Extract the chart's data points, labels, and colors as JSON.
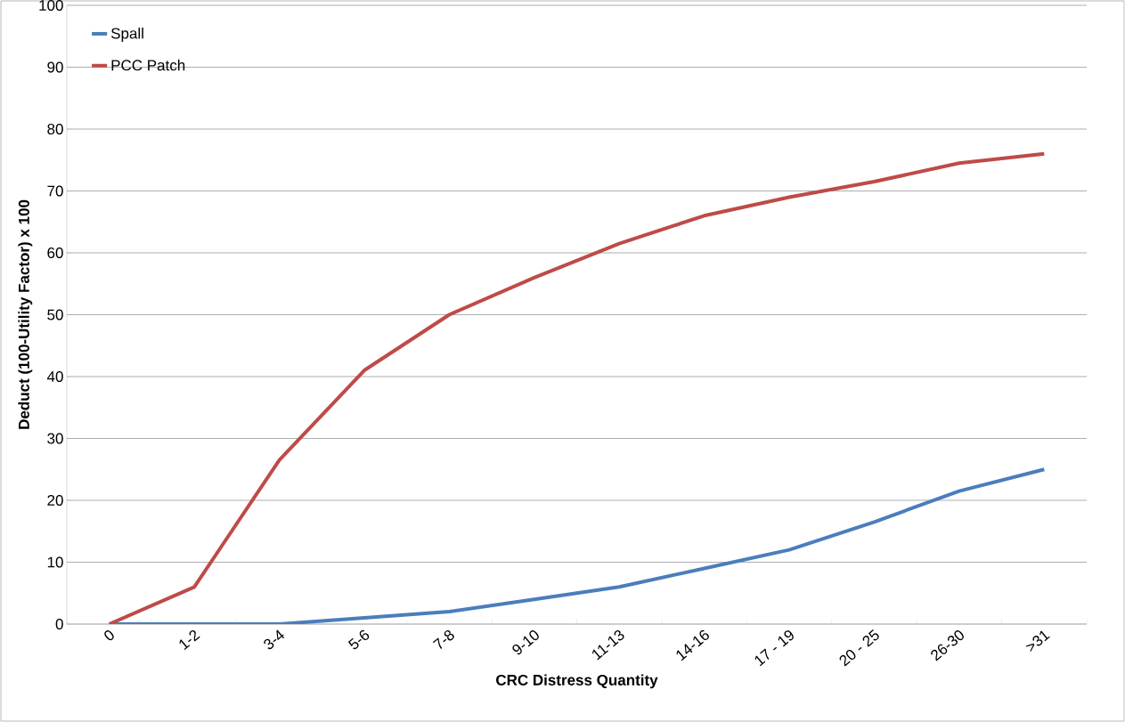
{
  "chart_data": {
    "type": "line",
    "xlabel": "CRC Distress Quantity",
    "ylabel": "Deduct (100-Utility Factor) x 100",
    "categories": [
      "0",
      "1-2",
      "3-4",
      "5-6",
      "7-8",
      "9-10",
      "11-13",
      "14-16",
      "17 - 19",
      "20 - 25",
      "26-30",
      ">31"
    ],
    "series": [
      {
        "name": "Spall",
        "color": "#4a7ebb",
        "values": [
          0,
          0,
          0,
          1,
          2,
          4,
          6,
          9,
          12,
          16.5,
          21.5,
          25
        ]
      },
      {
        "name": "PCC Patch",
        "color": "#be4b48",
        "values": [
          0,
          6,
          26.5,
          41,
          50,
          56,
          61.5,
          66,
          69,
          71.5,
          74.5,
          76
        ]
      }
    ],
    "ylim": [
      0,
      100
    ],
    "yticks": [
      0,
      10,
      20,
      30,
      40,
      50,
      60,
      70,
      80,
      90,
      100
    ],
    "grid": "y",
    "legend": "top left",
    "marker": "none",
    "line_style": "solid"
  }
}
